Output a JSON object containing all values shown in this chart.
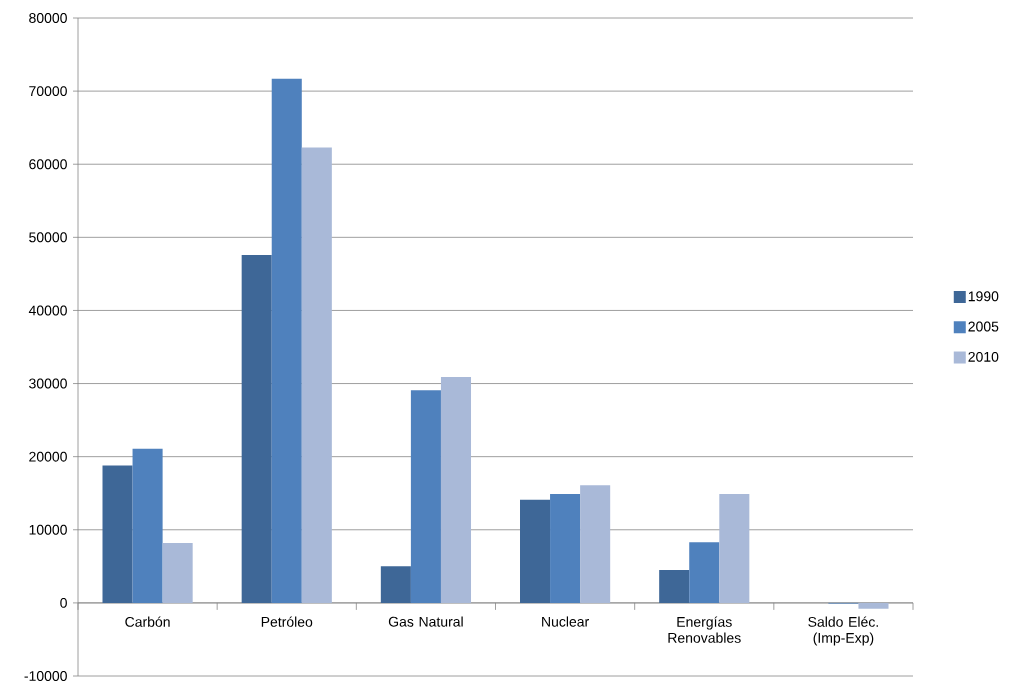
{
  "chart_data": {
    "type": "bar",
    "categories": [
      "Carbón",
      "Petróleo",
      "Gas Natural",
      "Nuclear",
      "Energías Renovables",
      "Saldo Eléc. (Imp-Exp)"
    ],
    "series": [
      {
        "name": "1990",
        "color": "#3e6797",
        "values": [
          18800,
          47600,
          5000,
          14100,
          4500,
          0
        ]
      },
      {
        "name": "2005",
        "color": "#4f81bd",
        "values": [
          21100,
          71700,
          29100,
          14900,
          8300,
          -100
        ]
      },
      {
        "name": "2010",
        "color": "#a9b9d8",
        "values": [
          8200,
          62300,
          30900,
          16100,
          14900,
          -800
        ]
      }
    ],
    "ylim": [
      -10000,
      80000
    ],
    "yticks": [
      -10000,
      0,
      10000,
      20000,
      30000,
      40000,
      50000,
      60000,
      70000,
      80000
    ],
    "grid": "y",
    "legend": "right"
  }
}
